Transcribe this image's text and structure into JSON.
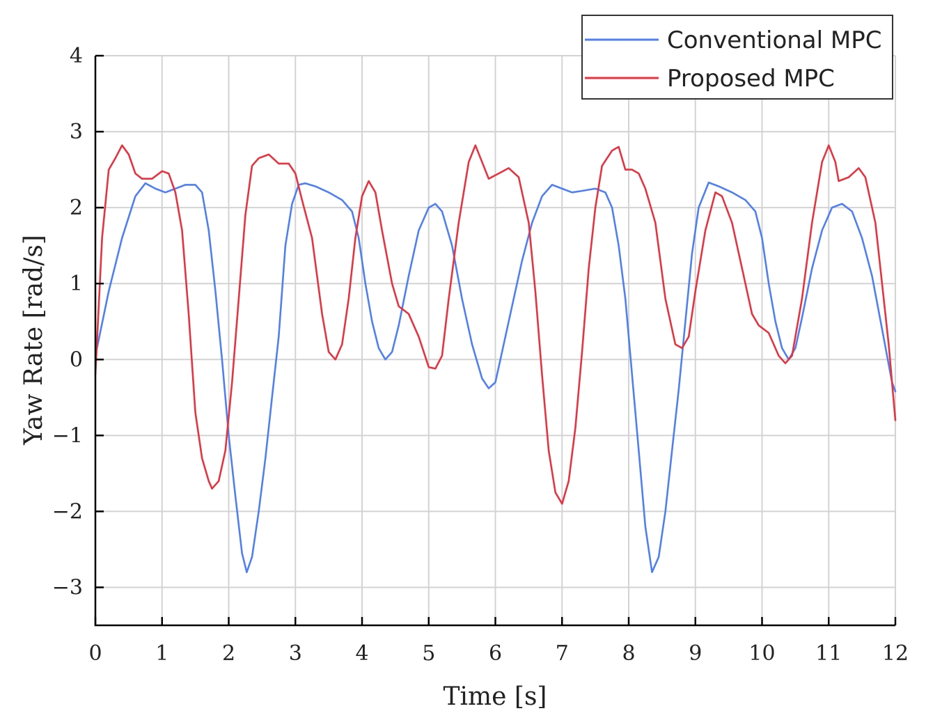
{
  "chart_data": {
    "type": "line",
    "title": "",
    "xlabel": "Time [s]",
    "ylabel": "Yaw Rate [rad/s]",
    "xlim": [
      0,
      12
    ],
    "ylim": [
      -3.5,
      4
    ],
    "x_ticks": [
      0,
      1,
      2,
      3,
      4,
      5,
      6,
      7,
      8,
      9,
      10,
      11,
      12
    ],
    "y_ticks": [
      -3,
      -2,
      -1,
      0,
      1,
      2,
      3,
      4
    ],
    "x_tick_labels": [
      "0",
      "1",
      "2",
      "3",
      "4",
      "5",
      "6",
      "7",
      "8",
      "9",
      "10",
      "11",
      "12"
    ],
    "y_tick_labels": [
      "−3",
      "−2",
      "−1",
      "0",
      "1",
      "2",
      "3",
      "4"
    ],
    "grid": true,
    "legend_position": "top-right",
    "series": [
      {
        "name": "Conventional MPC",
        "color": "#4f7ff0",
        "points": [
          [
            0,
            0.05
          ],
          [
            0.2,
            0.9
          ],
          [
            0.4,
            1.6
          ],
          [
            0.6,
            2.15
          ],
          [
            0.75,
            2.32
          ],
          [
            0.9,
            2.25
          ],
          [
            1.05,
            2.2
          ],
          [
            1.2,
            2.25
          ],
          [
            1.35,
            2.3
          ],
          [
            1.5,
            2.3
          ],
          [
            1.6,
            2.2
          ],
          [
            1.7,
            1.7
          ],
          [
            1.8,
            0.9
          ],
          [
            1.9,
            0.0
          ],
          [
            2.0,
            -1.0
          ],
          [
            2.1,
            -1.8
          ],
          [
            2.2,
            -2.55
          ],
          [
            2.27,
            -2.8
          ],
          [
            2.35,
            -2.6
          ],
          [
            2.45,
            -2.0
          ],
          [
            2.55,
            -1.3
          ],
          [
            2.65,
            -0.5
          ],
          [
            2.75,
            0.3
          ],
          [
            2.85,
            1.5
          ],
          [
            2.95,
            2.05
          ],
          [
            3.05,
            2.3
          ],
          [
            3.15,
            2.32
          ],
          [
            3.3,
            2.28
          ],
          [
            3.5,
            2.2
          ],
          [
            3.7,
            2.1
          ],
          [
            3.85,
            1.95
          ],
          [
            3.95,
            1.6
          ],
          [
            4.05,
            1.0
          ],
          [
            4.15,
            0.5
          ],
          [
            4.25,
            0.15
          ],
          [
            4.35,
            0.0
          ],
          [
            4.45,
            0.1
          ],
          [
            4.55,
            0.45
          ],
          [
            4.7,
            1.1
          ],
          [
            4.85,
            1.7
          ],
          [
            5.0,
            2.0
          ],
          [
            5.1,
            2.05
          ],
          [
            5.2,
            1.95
          ],
          [
            5.35,
            1.5
          ],
          [
            5.5,
            0.8
          ],
          [
            5.65,
            0.2
          ],
          [
            5.8,
            -0.25
          ],
          [
            5.9,
            -0.38
          ],
          [
            6.0,
            -0.3
          ],
          [
            6.1,
            0.1
          ],
          [
            6.25,
            0.7
          ],
          [
            6.4,
            1.3
          ],
          [
            6.55,
            1.8
          ],
          [
            6.7,
            2.15
          ],
          [
            6.85,
            2.3
          ],
          [
            7.0,
            2.25
          ],
          [
            7.15,
            2.2
          ],
          [
            7.3,
            2.22
          ],
          [
            7.5,
            2.25
          ],
          [
            7.65,
            2.2
          ],
          [
            7.75,
            2.0
          ],
          [
            7.85,
            1.5
          ],
          [
            7.95,
            0.8
          ],
          [
            8.05,
            -0.2
          ],
          [
            8.15,
            -1.2
          ],
          [
            8.25,
            -2.2
          ],
          [
            8.35,
            -2.8
          ],
          [
            8.45,
            -2.6
          ],
          [
            8.55,
            -2.0
          ],
          [
            8.65,
            -1.2
          ],
          [
            8.75,
            -0.4
          ],
          [
            8.85,
            0.5
          ],
          [
            8.95,
            1.4
          ],
          [
            9.05,
            2.0
          ],
          [
            9.2,
            2.33
          ],
          [
            9.35,
            2.28
          ],
          [
            9.55,
            2.2
          ],
          [
            9.75,
            2.1
          ],
          [
            9.9,
            1.95
          ],
          [
            10.0,
            1.6
          ],
          [
            10.1,
            1.0
          ],
          [
            10.2,
            0.5
          ],
          [
            10.3,
            0.15
          ],
          [
            10.4,
            0.0
          ],
          [
            10.5,
            0.15
          ],
          [
            10.6,
            0.55
          ],
          [
            10.75,
            1.2
          ],
          [
            10.9,
            1.7
          ],
          [
            11.05,
            2.0
          ],
          [
            11.2,
            2.05
          ],
          [
            11.35,
            1.95
          ],
          [
            11.5,
            1.6
          ],
          [
            11.65,
            1.1
          ],
          [
            11.8,
            0.4
          ],
          [
            11.95,
            -0.3
          ],
          [
            12.0,
            -0.42
          ]
        ]
      },
      {
        "name": "Proposed MPC",
        "color": "#e5333f",
        "points": [
          [
            0,
            -0.2
          ],
          [
            0.1,
            1.6
          ],
          [
            0.2,
            2.5
          ],
          [
            0.3,
            2.65
          ],
          [
            0.4,
            2.82
          ],
          [
            0.5,
            2.7
          ],
          [
            0.6,
            2.45
          ],
          [
            0.7,
            2.38
          ],
          [
            0.85,
            2.38
          ],
          [
            1.0,
            2.48
          ],
          [
            1.1,
            2.45
          ],
          [
            1.2,
            2.2
          ],
          [
            1.3,
            1.7
          ],
          [
            1.4,
            0.6
          ],
          [
            1.5,
            -0.7
          ],
          [
            1.6,
            -1.3
          ],
          [
            1.7,
            -1.6
          ],
          [
            1.75,
            -1.7
          ],
          [
            1.85,
            -1.6
          ],
          [
            1.95,
            -1.2
          ],
          [
            2.05,
            -0.3
          ],
          [
            2.15,
            0.8
          ],
          [
            2.25,
            1.9
          ],
          [
            2.35,
            2.55
          ],
          [
            2.45,
            2.65
          ],
          [
            2.6,
            2.7
          ],
          [
            2.75,
            2.58
          ],
          [
            2.9,
            2.58
          ],
          [
            3.0,
            2.45
          ],
          [
            3.1,
            2.1
          ],
          [
            3.25,
            1.6
          ],
          [
            3.4,
            0.6
          ],
          [
            3.5,
            0.1
          ],
          [
            3.6,
            0.0
          ],
          [
            3.7,
            0.2
          ],
          [
            3.8,
            0.8
          ],
          [
            3.9,
            1.6
          ],
          [
            4.0,
            2.15
          ],
          [
            4.1,
            2.35
          ],
          [
            4.2,
            2.2
          ],
          [
            4.3,
            1.7
          ],
          [
            4.45,
            1.0
          ],
          [
            4.55,
            0.7
          ],
          [
            4.7,
            0.6
          ],
          [
            4.85,
            0.3
          ],
          [
            5.0,
            -0.1
          ],
          [
            5.1,
            -0.12
          ],
          [
            5.2,
            0.05
          ],
          [
            5.3,
            0.8
          ],
          [
            5.45,
            1.8
          ],
          [
            5.6,
            2.6
          ],
          [
            5.7,
            2.82
          ],
          [
            5.8,
            2.6
          ],
          [
            5.9,
            2.38
          ],
          [
            6.05,
            2.45
          ],
          [
            6.2,
            2.52
          ],
          [
            6.35,
            2.4
          ],
          [
            6.5,
            1.8
          ],
          [
            6.6,
            0.9
          ],
          [
            6.7,
            -0.2
          ],
          [
            6.8,
            -1.2
          ],
          [
            6.9,
            -1.75
          ],
          [
            7.0,
            -1.9
          ],
          [
            7.1,
            -1.6
          ],
          [
            7.2,
            -0.9
          ],
          [
            7.3,
            0.1
          ],
          [
            7.4,
            1.2
          ],
          [
            7.5,
            2.0
          ],
          [
            7.6,
            2.55
          ],
          [
            7.75,
            2.75
          ],
          [
            7.85,
            2.8
          ],
          [
            7.95,
            2.5
          ],
          [
            8.05,
            2.5
          ],
          [
            8.15,
            2.45
          ],
          [
            8.25,
            2.25
          ],
          [
            8.4,
            1.8
          ],
          [
            8.55,
            0.8
          ],
          [
            8.7,
            0.2
          ],
          [
            8.8,
            0.15
          ],
          [
            8.9,
            0.3
          ],
          [
            9.0,
            0.9
          ],
          [
            9.15,
            1.7
          ],
          [
            9.3,
            2.2
          ],
          [
            9.4,
            2.15
          ],
          [
            9.55,
            1.8
          ],
          [
            9.7,
            1.2
          ],
          [
            9.85,
            0.6
          ],
          [
            9.95,
            0.45
          ],
          [
            10.1,
            0.35
          ],
          [
            10.25,
            0.05
          ],
          [
            10.35,
            -0.05
          ],
          [
            10.45,
            0.05
          ],
          [
            10.6,
            0.8
          ],
          [
            10.75,
            1.8
          ],
          [
            10.9,
            2.6
          ],
          [
            11.0,
            2.82
          ],
          [
            11.1,
            2.6
          ],
          [
            11.15,
            2.35
          ],
          [
            11.3,
            2.4
          ],
          [
            11.45,
            2.52
          ],
          [
            11.55,
            2.4
          ],
          [
            11.7,
            1.8
          ],
          [
            11.8,
            1.0
          ],
          [
            11.9,
            0.2
          ],
          [
            12.0,
            -0.8
          ]
        ]
      }
    ]
  }
}
